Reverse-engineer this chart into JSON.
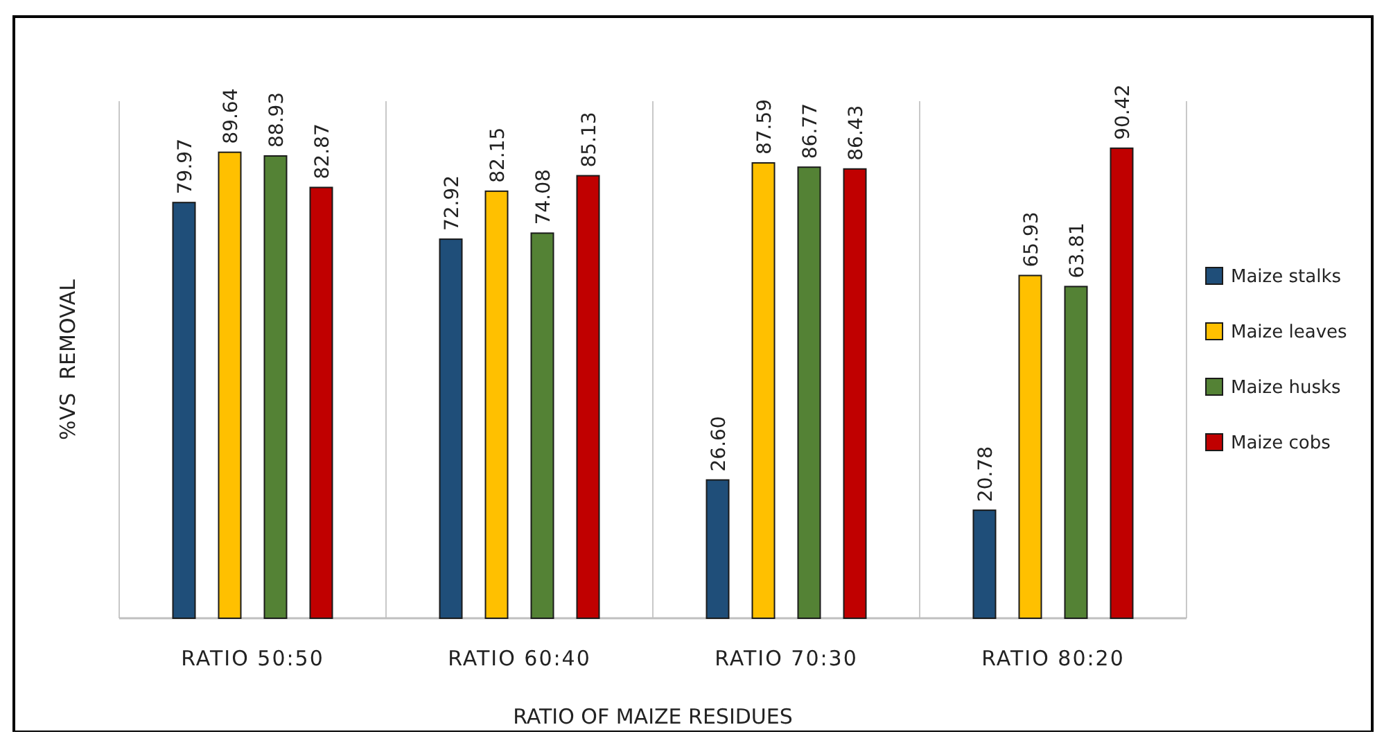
{
  "chart_data": {
    "type": "bar",
    "xlabel": "RATIO OF MAIZE RESIDUES",
    "ylabel": "%VS  REMOVAL",
    "categories": [
      "RATIO 50:50",
      "RATIO 60:40",
      "RATIO 70:30",
      "RATIO 80:20"
    ],
    "series": [
      {
        "name": "Maize stalks",
        "color": "#1f4e79",
        "values": [
          79.97,
          72.92,
          26.6,
          20.78
        ],
        "value_labels": [
          "79.97",
          "72.92",
          "26.60",
          "20.78"
        ]
      },
      {
        "name": "Maize leaves",
        "color": "#ffc000",
        "values": [
          89.64,
          82.15,
          87.59,
          65.93
        ],
        "value_labels": [
          "89.64",
          "82.15",
          "87.59",
          "65.93"
        ]
      },
      {
        "name": "Maize husks",
        "color": "#548235",
        "values": [
          88.93,
          74.08,
          86.77,
          63.81
        ],
        "value_labels": [
          "88.93",
          "74.08",
          "86.77",
          "63.81"
        ]
      },
      {
        "name": "Maize cobs",
        "color": "#c00000",
        "values": [
          82.87,
          85.13,
          86.43,
          90.42
        ],
        "value_labels": [
          "82.87",
          "85.13",
          "86.43",
          "90.42"
        ]
      }
    ],
    "tick_labels": "x",
    "grid": "x",
    "legend": "right"
  }
}
